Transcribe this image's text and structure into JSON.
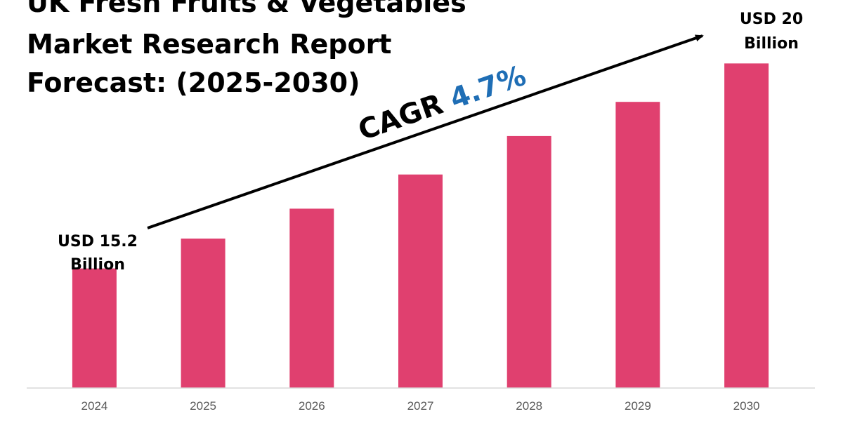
{
  "title": {
    "lines": [
      "UK Fresh Fruits & Vegetables",
      "Market Research Report",
      "Forecast: (2025-2030)"
    ]
  },
  "annotations": {
    "cagr_prefix": "CAGR ",
    "cagr_value": "4.7%",
    "start_value_line1": "USD 15.2",
    "start_value_line2": "Billion",
    "end_value_line1": "USD 20",
    "end_value_line2": "Billion"
  },
  "colors": {
    "bar": "#e0406f",
    "cagr_value": "#1f6eb5",
    "text": "#000000",
    "tick": "#595959",
    "axis": "#d9d9d9"
  },
  "chart_data": {
    "type": "bar",
    "title": "UK Fresh Fruits & Vegetables Market Research Report Forecast: (2025-2030)",
    "categories": [
      "2024",
      "2025",
      "2026",
      "2027",
      "2028",
      "2029",
      "2030"
    ],
    "values": [
      15.2,
      15.9,
      16.6,
      17.4,
      18.3,
      19.1,
      20.0
    ],
    "value_unit": "USD Billion",
    "ylim": [
      12.4,
      20.5
    ],
    "xlabel": "",
    "ylabel": "",
    "grid": false,
    "legend": "none"
  }
}
